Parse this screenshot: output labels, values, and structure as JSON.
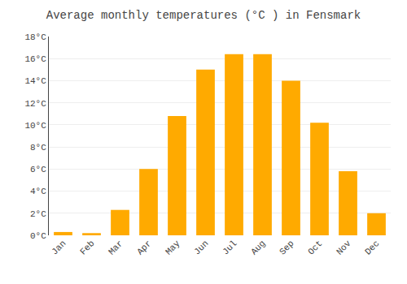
{
  "chart_data": {
    "type": "bar",
    "title": "Average monthly temperatures (°C ) in Fensmark",
    "categories": [
      "Jan",
      "Feb",
      "Mar",
      "Apr",
      "May",
      "Jun",
      "Jul",
      "Aug",
      "Sep",
      "Oct",
      "Nov",
      "Dec"
    ],
    "values": [
      0.3,
      0.2,
      2.3,
      6.0,
      10.8,
      15.0,
      16.4,
      16.4,
      14.0,
      10.2,
      5.8,
      2.0
    ],
    "color": "#FFAA00",
    "ylim": [
      0,
      18
    ],
    "yticks": [
      {
        "value": 0,
        "label": "0°C"
      },
      {
        "value": 2,
        "label": "2°C"
      },
      {
        "value": 4,
        "label": "4°C"
      },
      {
        "value": 6,
        "label": "6°C"
      },
      {
        "value": 8,
        "label": "8°C"
      },
      {
        "value": 10,
        "label": "10°C"
      },
      {
        "value": 12,
        "label": "12°C"
      },
      {
        "value": 14,
        "label": "14°C"
      },
      {
        "value": 16,
        "label": "16°C"
      },
      {
        "value": 18,
        "label": "18°C"
      }
    ],
    "grid": true
  }
}
